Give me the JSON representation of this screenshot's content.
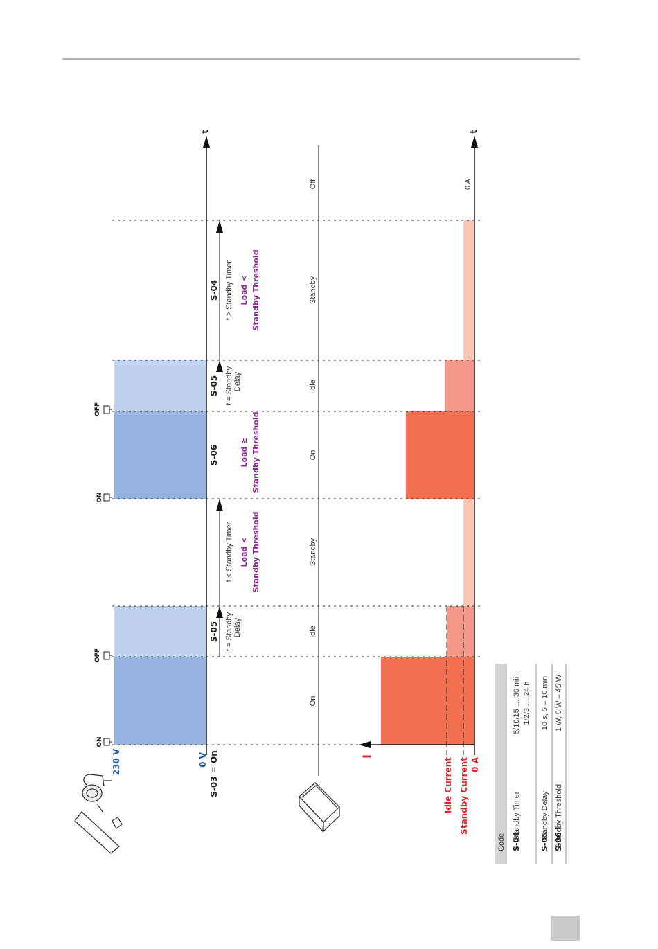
{
  "axes": {
    "time_label": "t",
    "current_label": "I"
  },
  "voltage": {
    "high": "230 V",
    "low": "0 V",
    "mode": "S-03 = On"
  },
  "switch": {
    "on": "ON",
    "off": "OFF"
  },
  "current_levels": {
    "idle": "Idle Current",
    "standby": "Standby Current",
    "zero": "0 A",
    "end": "0 A"
  },
  "states": {
    "on": "On",
    "idle": "Idle",
    "standby": "Standby",
    "off": "Off"
  },
  "phases": {
    "s05a": {
      "code": "S-05",
      "line1": "t = Standby",
      "line2": "Delay"
    },
    "s05b": {
      "line1": "t < Standby Timer",
      "cond1": "Load <",
      "cond2": "Standby Threshold"
    },
    "s06": {
      "code": "S-06",
      "cond1": "Load ≥",
      "cond2": "Standby Threshold"
    },
    "s05c": {
      "code": "S-05",
      "line1": "t = Standby",
      "line2": "Delay"
    },
    "s04": {
      "code": "S-04",
      "line1": "t ≥ Standby Timer",
      "cond1": "Load <",
      "cond2": "Standby Threshold"
    }
  },
  "table": {
    "header": "Code",
    "rows": [
      {
        "code": "S-04",
        "name": "Standby Timer",
        "value1": "5/10/15 … 30 min,",
        "value2": "1/2/3 … 24 h"
      },
      {
        "code": "S-05",
        "name": "Standby Delay",
        "value1": "10 s, 5 – 10 min",
        "value2": ""
      },
      {
        "code": "S-06",
        "name": "Standby Threshold",
        "value1": "1 W, 5 W – 45 W",
        "value2": ""
      }
    ]
  },
  "colors": {
    "voltage_on": "#95b3de",
    "voltage_idle": "#bfd0ec",
    "current_on": "#f07050",
    "current_idle": "#f4998a",
    "current_standby": "#f9c6b4",
    "purple": "#8a2a8f",
    "red": "#d6262f",
    "blue": "#1f5fa8"
  }
}
